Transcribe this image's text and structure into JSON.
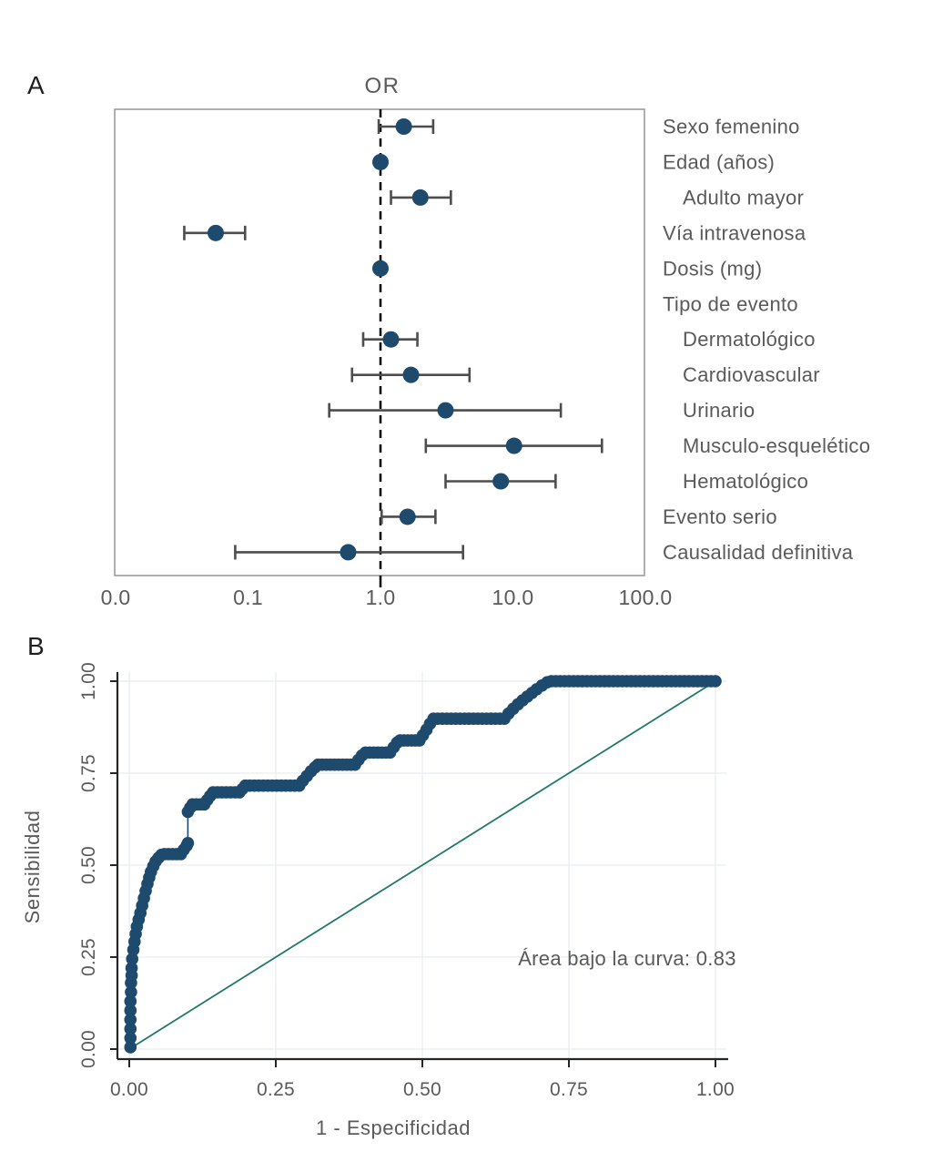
{
  "figure": {
    "background": "#ffffff",
    "panels": [
      "A",
      "B"
    ]
  },
  "colors": {
    "point_navy": "#1d4a6d",
    "diagonal_teal": "#20796a",
    "error_bar_gray": "#4d4d4d",
    "text_gray": "#5a5a5a",
    "box_border_gray": "#9c9c9c",
    "grid_pale": "#e7eef1",
    "axis_black": "#262626",
    "ref_line_black": "#000000"
  },
  "chart_data": [
    {
      "id": "forest_plot",
      "type": "scatter",
      "panel_letter": "A",
      "title": "OR",
      "x_scale": "log10",
      "x_tick_labels": [
        "0.0",
        "0.1",
        "1.0",
        "10.0",
        "100.0"
      ],
      "x_tick_values": [
        null,
        0.1,
        1.0,
        10.0,
        100.0
      ],
      "reference_line": 1.0,
      "rows": [
        {
          "label": "Sexo femenino",
          "indent": 0,
          "or": 1.5,
          "lo": 0.97,
          "hi": 2.5
        },
        {
          "label": "Edad (años)",
          "indent": 0,
          "or": 1.0,
          "lo": 0.97,
          "hi": 1.05
        },
        {
          "label": "Adulto mayor",
          "indent": 1,
          "or": 2.0,
          "lo": 1.2,
          "hi": 3.4
        },
        {
          "label": "Vía intravenosa",
          "indent": 0,
          "or": 0.057,
          "lo": 0.033,
          "hi": 0.095
        },
        {
          "label": "Dosis (mg)",
          "indent": 0,
          "or": 1.0,
          "lo": 0.98,
          "hi": 1.02
        },
        {
          "label": "Tipo de evento",
          "indent": 0,
          "or": null,
          "lo": null,
          "hi": null
        },
        {
          "label": "Dermatológico",
          "indent": 1,
          "or": 1.2,
          "lo": 0.74,
          "hi": 1.9
        },
        {
          "label": "Cardiovascular",
          "indent": 1,
          "or": 1.7,
          "lo": 0.61,
          "hi": 4.7
        },
        {
          "label": "Urinario",
          "indent": 1,
          "or": 3.1,
          "lo": 0.41,
          "hi": 23
        },
        {
          "label": "Musculo-esquelético",
          "indent": 1,
          "or": 10.2,
          "lo": 2.2,
          "hi": 47
        },
        {
          "label": "Hematológico",
          "indent": 1,
          "or": 8.1,
          "lo": 3.1,
          "hi": 21
        },
        {
          "label": "Evento serio",
          "indent": 0,
          "or": 1.6,
          "lo": 1.02,
          "hi": 2.6
        },
        {
          "label": "Causalidad definitiva",
          "indent": 0,
          "or": 0.57,
          "lo": 0.08,
          "hi": 4.2
        }
      ]
    },
    {
      "id": "roc_curve",
      "type": "line",
      "panel_letter": "B",
      "xlabel": "1 - Especificidad",
      "ylabel": "Sensibilidad",
      "x_tick_labels": [
        "0.00",
        "0.25",
        "0.50",
        "0.75",
        "1.00"
      ],
      "y_tick_labels": [
        "0.00",
        "0.25",
        "0.50",
        "0.75",
        "1.00"
      ],
      "tick_values": [
        0,
        0.25,
        0.5,
        0.75,
        1.0
      ],
      "xlim": [
        0,
        1
      ],
      "ylim": [
        0,
        1
      ],
      "grid": true,
      "annotation": "Área bajo la curva: 0.83",
      "auc": 0.83,
      "diagonal_reference": true,
      "roc_points": [
        [
          0.002,
          0.005
        ],
        [
          0.002,
          0.03
        ],
        [
          0.002,
          0.055
        ],
        [
          0.002,
          0.08
        ],
        [
          0.002,
          0.105
        ],
        [
          0.002,
          0.13
        ],
        [
          0.003,
          0.155
        ],
        [
          0.003,
          0.18
        ],
        [
          0.004,
          0.2
        ],
        [
          0.004,
          0.22
        ],
        [
          0.005,
          0.245
        ],
        [
          0.007,
          0.27
        ],
        [
          0.009,
          0.292
        ],
        [
          0.011,
          0.313
        ],
        [
          0.013,
          0.333
        ],
        [
          0.016,
          0.352
        ],
        [
          0.019,
          0.37
        ],
        [
          0.022,
          0.39
        ],
        [
          0.025,
          0.41
        ],
        [
          0.028,
          0.43
        ],
        [
          0.031,
          0.449
        ],
        [
          0.034,
          0.466
        ],
        [
          0.037,
          0.482
        ],
        [
          0.041,
          0.497
        ],
        [
          0.045,
          0.51
        ],
        [
          0.05,
          0.52
        ],
        [
          0.055,
          0.528
        ],
        [
          0.06,
          0.53
        ],
        [
          0.088,
          0.53
        ],
        [
          0.093,
          0.542
        ],
        [
          0.098,
          0.553
        ],
        [
          0.1,
          0.56
        ],
        [
          0.1,
          0.645
        ],
        [
          0.104,
          0.656
        ],
        [
          0.108,
          0.665
        ],
        [
          0.128,
          0.665
        ],
        [
          0.133,
          0.677
        ],
        [
          0.138,
          0.688
        ],
        [
          0.143,
          0.698
        ],
        [
          0.188,
          0.698
        ],
        [
          0.193,
          0.707
        ],
        [
          0.198,
          0.716
        ],
        [
          0.29,
          0.716
        ],
        [
          0.296,
          0.729
        ],
        [
          0.303,
          0.742
        ],
        [
          0.31,
          0.755
        ],
        [
          0.317,
          0.766
        ],
        [
          0.322,
          0.773
        ],
        [
          0.385,
          0.773
        ],
        [
          0.391,
          0.786
        ],
        [
          0.397,
          0.798
        ],
        [
          0.403,
          0.806
        ],
        [
          0.445,
          0.806
        ],
        [
          0.451,
          0.82
        ],
        [
          0.457,
          0.833
        ],
        [
          0.462,
          0.839
        ],
        [
          0.495,
          0.839
        ],
        [
          0.501,
          0.853
        ],
        [
          0.507,
          0.868
        ],
        [
          0.513,
          0.884
        ],
        [
          0.519,
          0.898
        ],
        [
          0.64,
          0.898
        ],
        [
          0.647,
          0.912
        ],
        [
          0.655,
          0.925
        ],
        [
          0.663,
          0.937
        ],
        [
          0.671,
          0.948
        ],
        [
          0.679,
          0.958
        ],
        [
          0.687,
          0.968
        ],
        [
          0.695,
          0.978
        ],
        [
          0.704,
          0.988
        ],
        [
          0.713,
          0.997
        ],
        [
          0.72,
          1.0
        ],
        [
          1.0,
          1.0
        ]
      ]
    }
  ]
}
